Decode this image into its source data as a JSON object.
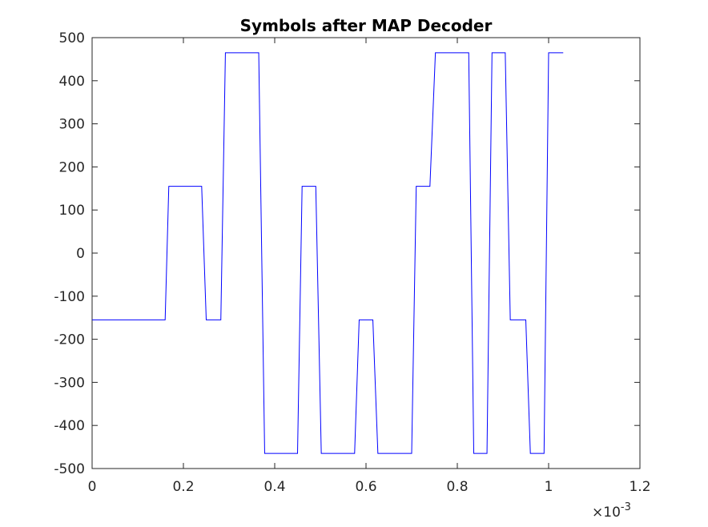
{
  "chart_data": {
    "type": "line",
    "title": "Symbols after MAP Decoder",
    "xlabel": "",
    "ylabel": "",
    "xlim": [
      0,
      0.0012
    ],
    "ylim": [
      -500,
      500
    ],
    "x_ticks": [
      0,
      0.0002,
      0.0004,
      0.0006,
      0.0008,
      0.001,
      0.0012
    ],
    "x_tick_labels": [
      "0",
      "0.2",
      "0.4",
      "0.6",
      "0.8",
      "1",
      "1.2"
    ],
    "y_ticks": [
      -500,
      -400,
      -300,
      -200,
      -100,
      0,
      100,
      200,
      300,
      400,
      500
    ],
    "y_tick_labels": [
      "-500",
      "-400",
      "-300",
      "-200",
      "-100",
      "0",
      "100",
      "200",
      "300",
      "400",
      "500"
    ],
    "x_exponent_label": {
      "times": "×",
      "base": "10",
      "exp": "-3"
    },
    "grid": false,
    "legend": "none",
    "series": [
      {
        "color": "#0000ff",
        "x": [
          0,
          0.00016,
          0.000168,
          0.00024,
          0.00025,
          0.000282,
          0.000292,
          0.000365,
          0.000378,
          0.00045,
          0.00046,
          0.00049,
          0.000502,
          0.000575,
          0.000585,
          0.000615,
          0.000626,
          0.0007,
          0.00071,
          0.00074,
          0.000752,
          0.000825,
          0.000836,
          0.000865,
          0.000876,
          0.000905,
          0.000916,
          0.00095,
          0.00096,
          0.00099,
          0.001,
          0.001032
        ],
        "y": [
          -155,
          -155,
          155,
          155,
          -155,
          -155,
          465,
          465,
          -465,
          -465,
          155,
          155,
          -465,
          -465,
          -155,
          -155,
          -465,
          -465,
          155,
          155,
          465,
          465,
          -465,
          -465,
          465,
          465,
          -155,
          -155,
          -465,
          -465,
          465,
          465
        ]
      }
    ]
  }
}
